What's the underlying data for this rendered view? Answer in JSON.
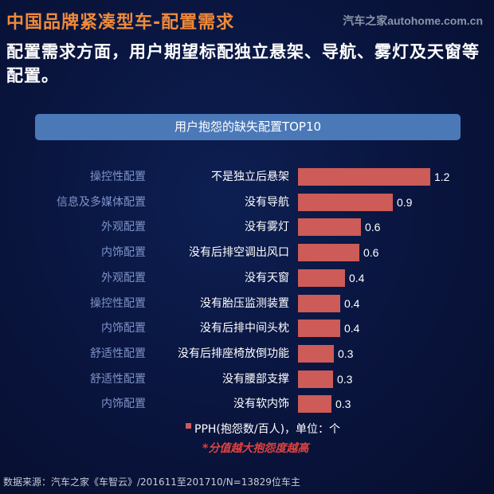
{
  "header": {
    "title": "中国品牌紧凑型车-配置需求",
    "brand": "汽车之家autohome.com.cn",
    "subtitle": "配置需求方面，用户期望标配独立悬架、导航、雾灯及天窗等配置。"
  },
  "chart_header": "用户抱怨的缺失配置TOP10",
  "rows": [
    {
      "category": "操控性配置",
      "item": "不是独立后悬架",
      "value": "1.2",
      "width": 166
    },
    {
      "category": "信息及多媒体配置",
      "item": "没有导航",
      "value": "0.9",
      "width": 119
    },
    {
      "category": "外观配置",
      "item": "没有雾灯",
      "value": "0.6",
      "width": 79
    },
    {
      "category": "内饰配置",
      "item": "没有后排空调出风口",
      "value": "0.6",
      "width": 77
    },
    {
      "category": "外观配置",
      "item": "没有天窗",
      "value": "0.4",
      "width": 59
    },
    {
      "category": "操控性配置",
      "item": "没有胎压监测装置",
      "value": "0.4",
      "width": 53
    },
    {
      "category": "内饰配置",
      "item": "没有后排中间头枕",
      "value": "0.4",
      "width": 53
    },
    {
      "category": "舒适性配置",
      "item": "没有后排座椅放倒功能",
      "value": "0.3",
      "width": 45
    },
    {
      "category": "舒适性配置",
      "item": "没有腰部支撑",
      "value": "0.3",
      "width": 44
    },
    {
      "category": "内饰配置",
      "item": "没有软内饰",
      "value": "0.3",
      "width": 42
    }
  ],
  "legend": "PPH(抱怨数/百人)，单位：个",
  "note": "*分值越大抱怨度越高",
  "source": "数据来源：汽车之家《车智云》/201611至201710/N=13829位车主",
  "colors": {
    "bar": "#cd5b57",
    "title": "#ee8a3a",
    "header_bg": "#4b79b8",
    "category": "#7d93c8",
    "note": "#e0433e"
  },
  "chart_data": {
    "type": "bar",
    "orientation": "horizontal",
    "title": "用户抱怨的缺失配置TOP10",
    "categories": [
      "不是独立后悬架",
      "没有导航",
      "没有雾灯",
      "没有后排空调出风口",
      "没有天窗",
      "没有胎压监测装置",
      "没有后排中间头枕",
      "没有后排座椅放倒功能",
      "没有腰部支撑",
      "没有软内饰"
    ],
    "groups": [
      "操控性配置",
      "信息及多媒体配置",
      "外观配置",
      "内饰配置",
      "外观配置",
      "操控性配置",
      "内饰配置",
      "舒适性配置",
      "舒适性配置",
      "内饰配置"
    ],
    "series": [
      {
        "name": "PPH(抱怨数/百人)",
        "values": [
          1.2,
          0.9,
          0.6,
          0.6,
          0.4,
          0.4,
          0.4,
          0.3,
          0.3,
          0.3
        ]
      }
    ],
    "xlabel": "PPH(抱怨数/百人)，单位：个",
    "ylabel": "",
    "legend_position": "bottom",
    "grid": false
  }
}
